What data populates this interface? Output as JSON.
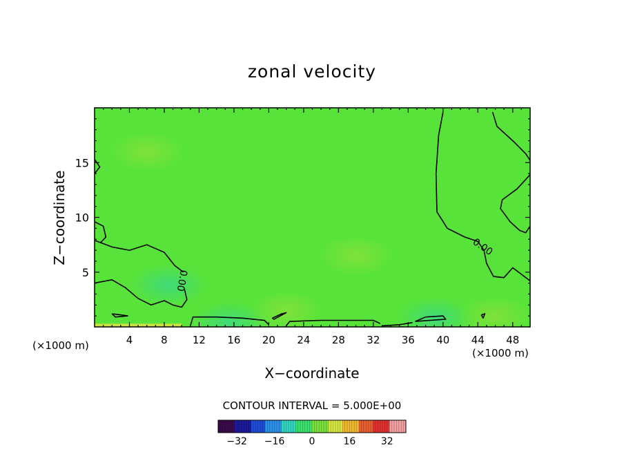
{
  "chart_data": {
    "type": "heatmap",
    "title": "zonal velocity",
    "xlabel": "X−coordinate",
    "ylabel": "Z−coordinate",
    "x_unit_left": "(×1000 m)",
    "x_unit_right": "(×1000 m)",
    "xlim": [
      0,
      50
    ],
    "ylim": [
      0,
      20
    ],
    "x_ticks": [
      4,
      8,
      12,
      16,
      20,
      24,
      28,
      32,
      36,
      40,
      44,
      48
    ],
    "y_ticks": [
      5,
      10,
      15
    ],
    "field_min": -40,
    "field_max": 40,
    "background_value": 1.5,
    "contour_label": "0.00",
    "contour_interval_text": "CONTOUR INTERVAL = 5.000E+00",
    "colorbar": {
      "range": [
        -40,
        40
      ],
      "tick_values": [
        -32,
        -16,
        0,
        16,
        32
      ],
      "tick_labels": [
        "−32",
        "−16",
        "0",
        "16",
        "32"
      ],
      "colors": [
        "#3a0a4a",
        "#1a1a9a",
        "#1e4cd8",
        "#2a90e8",
        "#30d6c0",
        "#3ae070",
        "#7ae23a",
        "#d6e640",
        "#f0b830",
        "#e86030",
        "#e03030",
        "#f0a0a0"
      ]
    },
    "patches": [
      {
        "x": 8.5,
        "z": 3.8,
        "value": -1.5
      },
      {
        "x": 15.5,
        "z": 0.4,
        "value": -3.5
      },
      {
        "x": 22,
        "z": 1.5,
        "value": 0.8
      },
      {
        "x": 6,
        "z": 16,
        "value": 2.8
      },
      {
        "x": 39,
        "z": 0.8,
        "value": -1.0
      },
      {
        "x": 46,
        "z": 1.0,
        "value": 3.5
      },
      {
        "x": 30,
        "z": 6.5,
        "value": 2.5
      }
    ],
    "zero_contours": [
      [
        [
          0,
          7.9
        ],
        [
          2,
          7.3
        ],
        [
          4,
          7.0
        ],
        [
          6,
          7.5
        ],
        [
          8,
          6.8
        ],
        [
          9.2,
          5.6
        ],
        [
          10.2,
          5.0
        ]
      ],
      [
        [
          0,
          4.0
        ],
        [
          2,
          4.3
        ],
        [
          3.5,
          3.6
        ],
        [
          5,
          2.6
        ],
        [
          6.5,
          2.0
        ],
        [
          8,
          2.4
        ],
        [
          9,
          2.0
        ],
        [
          10,
          1.8
        ],
        [
          10.6,
          2.5
        ],
        [
          10.3,
          3.5
        ]
      ],
      [
        [
          0,
          9.6
        ],
        [
          1,
          9.2
        ],
        [
          1.3,
          8.2
        ],
        [
          0.7,
          7.7
        ]
      ],
      [
        [
          0,
          15.3
        ],
        [
          0.6,
          14.6
        ],
        [
          0,
          14.0
        ]
      ],
      [
        [
          2,
          1.2
        ],
        [
          3,
          1.1
        ],
        [
          3.8,
          1.0
        ],
        [
          2.4,
          0.9
        ],
        [
          2,
          1.2
        ]
      ],
      [
        [
          11,
          0.1
        ],
        [
          11.3,
          0.9
        ],
        [
          14,
          0.9
        ],
        [
          17,
          0.8
        ],
        [
          19.5,
          0.6
        ],
        [
          20,
          0.2
        ]
      ],
      [
        [
          20.4,
          0.8
        ],
        [
          21.5,
          1.2
        ],
        [
          22,
          1.3
        ],
        [
          20.6,
          0.7
        ],
        [
          20.4,
          0.8
        ]
      ],
      [
        [
          22,
          0.1
        ],
        [
          22.4,
          0.5
        ],
        [
          26,
          0.6
        ],
        [
          32,
          0.6
        ],
        [
          32.8,
          0.3
        ]
      ],
      [
        [
          33,
          0.1
        ],
        [
          35,
          0.2
        ],
        [
          36.5,
          0.4
        ]
      ],
      [
        [
          36.8,
          0.5
        ],
        [
          38,
          0.9
        ],
        [
          40,
          1.0
        ],
        [
          40.3,
          0.7
        ],
        [
          38.5,
          0.6
        ],
        [
          36.8,
          0.5
        ]
      ],
      [
        [
          40,
          19.6
        ],
        [
          39.5,
          17.5
        ],
        [
          39.2,
          14.0
        ],
        [
          39.3,
          10.5
        ],
        [
          40.5,
          9.0
        ],
        [
          42.5,
          8.2
        ],
        [
          44,
          7.8
        ],
        [
          44.7,
          7.0
        ],
        [
          45,
          5.8
        ],
        [
          45.8,
          4.6
        ],
        [
          47,
          4.5
        ],
        [
          48,
          5.4
        ],
        [
          49,
          4.8
        ],
        [
          50,
          4.2
        ]
      ],
      [
        [
          45.7,
          19.6
        ],
        [
          46.2,
          18.3
        ],
        [
          48,
          17.0
        ],
        [
          49.5,
          15.8
        ],
        [
          50,
          15.2
        ]
      ],
      [
        [
          50,
          13.9
        ],
        [
          48.5,
          12.6
        ],
        [
          46.8,
          11.6
        ],
        [
          46.6,
          10.8
        ],
        [
          47.7,
          9.6
        ],
        [
          48.8,
          8.8
        ],
        [
          49.5,
          8.6
        ],
        [
          50,
          9.2
        ]
      ],
      [
        [
          44.4,
          1.1
        ],
        [
          44.8,
          1.2
        ],
        [
          44.6,
          0.8
        ],
        [
          44.4,
          1.1
        ]
      ]
    ]
  }
}
